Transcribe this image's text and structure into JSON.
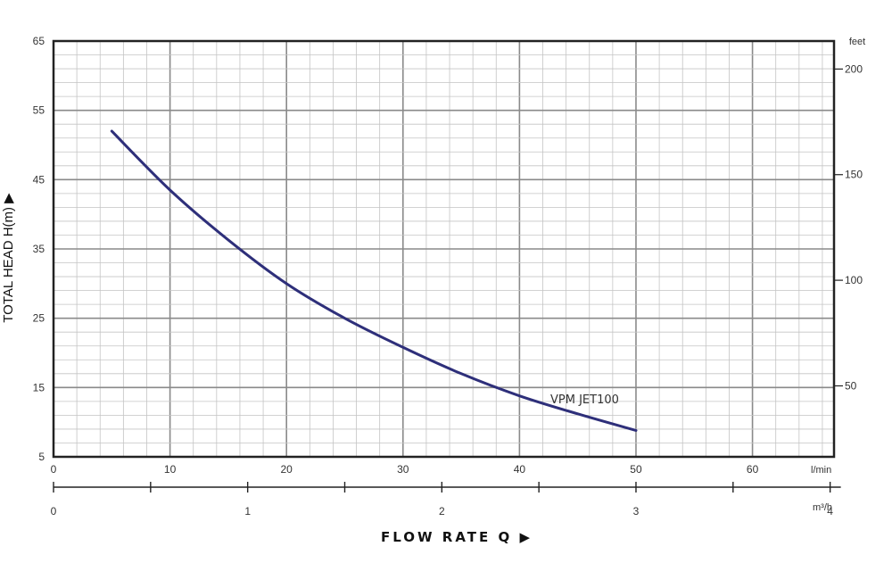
{
  "chart_data": {
    "type": "line",
    "y_axis_left": {
      "label": "TOTAL HEAD H(m) ▶",
      "ticks": [
        "5",
        "15",
        "25",
        "35",
        "45",
        "55",
        "65"
      ],
      "range": [
        5,
        65
      ]
    },
    "y_axis_right": {
      "unit": "feet",
      "ticks": [
        "200",
        "150",
        "100",
        "50"
      ]
    },
    "x_axis_primary": {
      "unit": "l/min",
      "ticks": [
        "0",
        "10",
        "20",
        "30",
        "40",
        "50",
        "60"
      ],
      "range": [
        0,
        67
      ]
    },
    "x_axis_secondary": {
      "unit": "m³/h",
      "ticks": [
        "0",
        "1",
        "2",
        "3",
        "4"
      ]
    },
    "xlabel": "FLOW RATE Q ▶",
    "grid": true,
    "series": [
      {
        "name": "VPM JET100",
        "color": "#2e2f7a",
        "x": [
          5,
          10,
          15,
          20,
          25,
          30,
          35,
          40,
          45,
          50
        ],
        "y": [
          52,
          43.5,
          36.3,
          30,
          25,
          20.8,
          17,
          13.8,
          11.2,
          8.8
        ]
      }
    ]
  }
}
